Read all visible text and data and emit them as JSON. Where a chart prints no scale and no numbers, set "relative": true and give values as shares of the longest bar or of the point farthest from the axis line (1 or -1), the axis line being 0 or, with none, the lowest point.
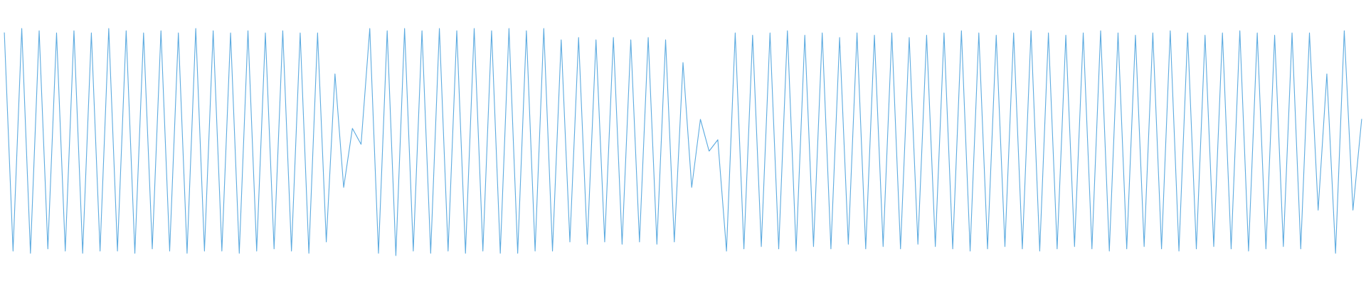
{
  "chart_data": {
    "type": "line",
    "relative": true,
    "categories": [
      null,
      null,
      null,
      null,
      null,
      null,
      null,
      null,
      null,
      null,
      null,
      null,
      null,
      null,
      null,
      null,
      null,
      null,
      null,
      null,
      null,
      null,
      null,
      null,
      null,
      null,
      null,
      null,
      null,
      null,
      null,
      null,
      null,
      null,
      null,
      null,
      null,
      null,
      null,
      null,
      null,
      null,
      null,
      null,
      null,
      null,
      null,
      null,
      null,
      null,
      null,
      null,
      null,
      null,
      null,
      null,
      null,
      null,
      null,
      null,
      null,
      null,
      null,
      null,
      null,
      null,
      null,
      null,
      null,
      null,
      null,
      null,
      null,
      null,
      null,
      null,
      null,
      null,
      null,
      null,
      null,
      null,
      null,
      null,
      null,
      null,
      null,
      null,
      null,
      null,
      null,
      null,
      null,
      null,
      null,
      null,
      null,
      null,
      null,
      null,
      null,
      null,
      null,
      null,
      null,
      null,
      null,
      null,
      null,
      null,
      null,
      null,
      null,
      null,
      null,
      null,
      null,
      null,
      null,
      null,
      null,
      null,
      null,
      null,
      null,
      null,
      null,
      null,
      null,
      null,
      null,
      null,
      null,
      null,
      null,
      null,
      null,
      null,
      null,
      null,
      null,
      null,
      null,
      null,
      null,
      null,
      null,
      null,
      null,
      null,
      null,
      null,
      null,
      null,
      null,
      null,
      null
    ],
    "series": [
      {
        "color": "#5dabe0",
        "values": [
          0.98,
          0.02,
          1,
          0.01,
          0.99,
          0.03,
          0.98,
          0.02,
          0.99,
          0.01,
          0.98,
          0.02,
          1,
          0.02,
          0.99,
          0.01,
          0.98,
          0.03,
          0.99,
          0.02,
          0.98,
          0.01,
          1,
          0.02,
          0.99,
          0.02,
          0.98,
          0.01,
          0.99,
          0.02,
          0.98,
          0.03,
          0.99,
          0.02,
          0.98,
          0.01,
          0.98,
          0.06,
          0.8,
          0.3,
          0.56,
          0.49,
          1,
          0.01,
          0.99,
          0,
          1,
          0.02,
          0.99,
          0.01,
          1,
          0.02,
          0.99,
          0.01,
          1,
          0.02,
          0.99,
          0.01,
          1,
          0.01,
          0.99,
          0.02,
          1,
          0.02,
          0.95,
          0.06,
          0.96,
          0.05,
          0.95,
          0.06,
          0.96,
          0.05,
          0.95,
          0.06,
          0.96,
          0.05,
          0.95,
          0.06,
          0.85,
          0.3,
          0.6,
          0.46,
          0.51,
          0.02,
          0.98,
          0.03,
          0.97,
          0.04,
          0.98,
          0.03,
          0.99,
          0.02,
          0.97,
          0.04,
          0.98,
          0.03,
          0.96,
          0.05,
          0.98,
          0.03,
          0.97,
          0.04,
          0.98,
          0.03,
          0.96,
          0.05,
          0.97,
          0.04,
          0.98,
          0.03,
          0.99,
          0.02,
          0.98,
          0.03,
          0.97,
          0.04,
          0.98,
          0.03,
          0.99,
          0.02,
          0.98,
          0.03,
          0.97,
          0.04,
          0.98,
          0.03,
          0.99,
          0.02,
          0.98,
          0.03,
          0.97,
          0.04,
          0.98,
          0.03,
          0.99,
          0.02,
          0.98,
          0.03,
          0.97,
          0.04,
          0.98,
          0.03,
          0.99,
          0.02,
          0.98,
          0.03,
          0.97,
          0.04,
          0.98,
          0.03,
          0.98,
          0.2,
          0.8,
          0.01,
          0.99,
          0.2,
          0.6
        ]
      }
    ]
  }
}
